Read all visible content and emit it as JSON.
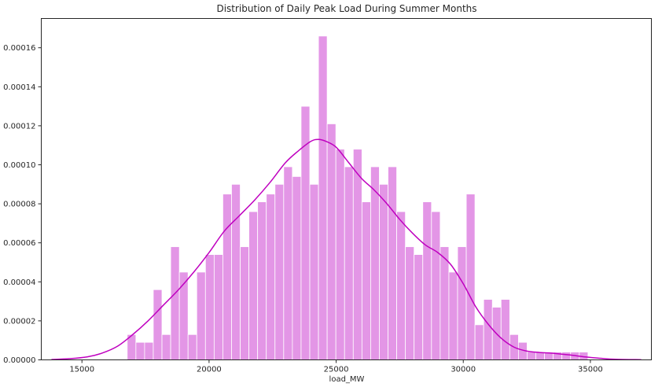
{
  "chart_data": {
    "type": "bar",
    "title": "Distribution of Daily Peak Load During Summer Months",
    "xlabel": "load_MW",
    "ylabel": "",
    "xlim": [
      13400,
      37400
    ],
    "ylim": [
      0,
      0.000175
    ],
    "xticks": [
      15000,
      20000,
      25000,
      30000,
      35000
    ],
    "yticks": [
      0.0,
      2e-05,
      4e-05,
      6e-05,
      8e-05,
      0.0001,
      0.00012,
      0.00014,
      0.00016
    ],
    "ytick_labels": [
      "0.00000",
      "0.00002",
      "0.00004",
      "0.00006",
      "0.00008",
      "0.00010",
      "0.00012",
      "0.00014",
      "0.00016"
    ],
    "xtick_labels": [
      "15000",
      "20000",
      "25000",
      "30000",
      "35000"
    ],
    "grid": false,
    "bar_color": "#e396e6",
    "kde_color": "#bf00bf",
    "bins": {
      "start": 16780,
      "width": 342,
      "densities": [
        1.3e-05,
        9e-06,
        9e-06,
        3.6e-05,
        1.3e-05,
        5.8e-05,
        4.5e-05,
        1.3e-05,
        4.5e-05,
        5.4e-05,
        5.4e-05,
        8.5e-05,
        9e-05,
        5.8e-05,
        7.6e-05,
        8.1e-05,
        8.5e-05,
        9e-05,
        9.9e-05,
        9.4e-05,
        0.00013,
        9e-05,
        0.000166,
        0.000121,
        0.000108,
        9.9e-05,
        0.000108,
        8.1e-05,
        9.9e-05,
        9e-05,
        9.9e-05,
        7.6e-05,
        5.8e-05,
        5.4e-05,
        8.1e-05,
        7.6e-05,
        5.8e-05,
        4.5e-05,
        5.8e-05,
        8.5e-05,
        1.8e-05,
        3.1e-05,
        2.7e-05,
        3.1e-05,
        1.3e-05,
        9e-06,
        4e-06,
        4e-06,
        4e-06,
        4e-06,
        4e-06,
        4e-06,
        4e-06
      ]
    },
    "kde": {
      "x": [
        13800,
        14500,
        15200,
        15800,
        16400,
        17000,
        17600,
        18200,
        18800,
        19400,
        20000,
        20600,
        21200,
        21800,
        22400,
        23000,
        23500,
        24000,
        24300,
        24600,
        25000,
        25500,
        26000,
        26500,
        27000,
        27500,
        28000,
        28500,
        29000,
        29500,
        30000,
        30500,
        31000,
        31500,
        32000,
        32500,
        33000,
        33600,
        34200,
        34800,
        35400,
        36000,
        37000
      ],
      "y": [
        2e-07,
        6e-07,
        1.5e-06,
        3.5e-06,
        7e-06,
        1.3e-05,
        2e-05,
        2.8e-05,
        3.6e-05,
        4.5e-05,
        5.5e-05,
        6.6e-05,
        7.4e-05,
        8.2e-05,
        9.1e-05,
        0.000101,
        0.000107,
        0.000112,
        0.000113,
        0.000112,
        0.000109,
        0.000101,
        9.3e-05,
        8.7e-05,
        8e-05,
        7.2e-05,
        6.5e-05,
        5.9e-05,
        5.5e-05,
        4.9e-05,
        3.9e-05,
        2.7e-05,
        1.8e-05,
        1.1e-05,
        6.5e-06,
        4.5e-06,
        3.8e-06,
        3.3e-06,
        2.5e-06,
        1.5e-06,
        8e-07,
        3e-07,
        1e-07
      ]
    }
  }
}
